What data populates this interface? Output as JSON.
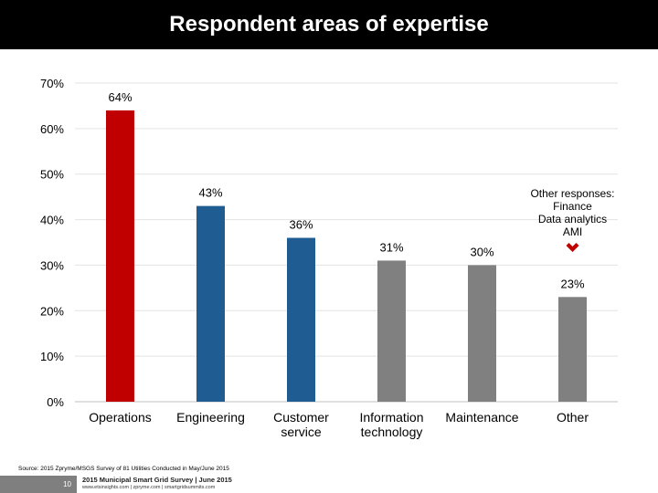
{
  "header": {
    "title": "Respondent areas of expertise"
  },
  "chart_data": {
    "type": "bar",
    "categories": [
      [
        "Operations"
      ],
      [
        "Engineering"
      ],
      [
        "Customer",
        "service"
      ],
      [
        "Information",
        "technology"
      ],
      [
        "Maintenance"
      ],
      [
        "Other"
      ]
    ],
    "values": [
      64,
      43,
      36,
      31,
      30,
      23
    ],
    "value_labels": [
      "64%",
      "43%",
      "36%",
      "31%",
      "30%",
      "23%"
    ],
    "bar_colors": [
      "#c00000",
      "#1f5c91",
      "#1f5c91",
      "#808080",
      "#808080",
      "#808080"
    ],
    "ylim": [
      0,
      70
    ],
    "yticks": [
      0,
      10,
      20,
      30,
      40,
      50,
      60,
      70
    ],
    "ytick_labels": [
      "0%",
      "10%",
      "20%",
      "30%",
      "40%",
      "50%",
      "60%",
      "70%"
    ],
    "grid": true,
    "annotation": {
      "lines": [
        "Other responses:",
        "Finance",
        "Data analytics",
        "AMI"
      ],
      "marker_color": "#c00000",
      "icon": "chevron-down-icon"
    }
  },
  "footer": {
    "source": "Source: 2015 Zpryme/MSGS Survey of 81 Utilities Conducted in May/June 2015",
    "page_number": "10",
    "survey_title": "2015 Municipal Smart Grid Survey | June 2015",
    "urls": "www.etsinsights.com | zpryme.com | smartgridsummits.com"
  }
}
